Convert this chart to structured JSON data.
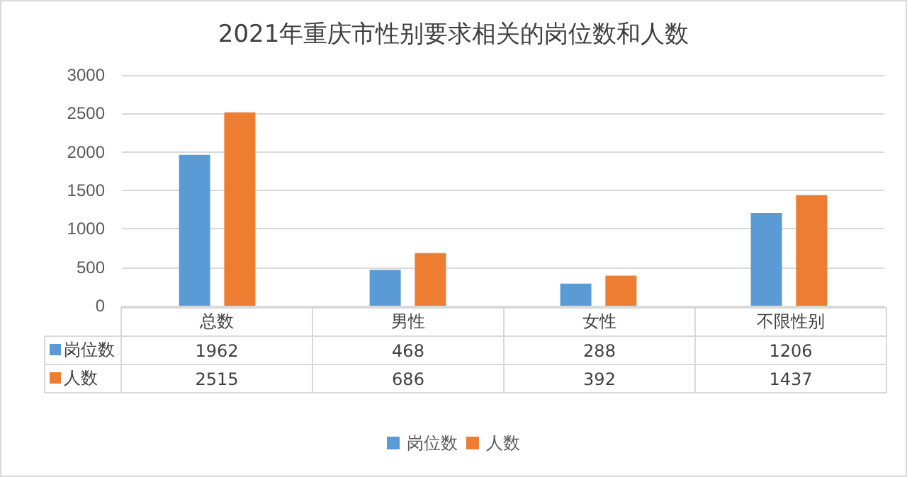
{
  "chart_data": {
    "type": "bar",
    "title": "2021年重庆市性别要求相关的岗位数和人数",
    "categories": [
      "总数",
      "男性",
      "女性",
      "不限性别"
    ],
    "series": [
      {
        "name": "岗位数",
        "color": "#5b9bd5",
        "values": [
          1962,
          468,
          288,
          1206
        ]
      },
      {
        "name": "人数",
        "color": "#ed7d31",
        "values": [
          2515,
          686,
          392,
          1437
        ]
      }
    ],
    "ylim": [
      0,
      3000
    ],
    "yticks": [
      0,
      500,
      1000,
      1500,
      2000,
      2500,
      3000
    ],
    "grid": "y",
    "legend": "bottom",
    "data_labels": true
  }
}
